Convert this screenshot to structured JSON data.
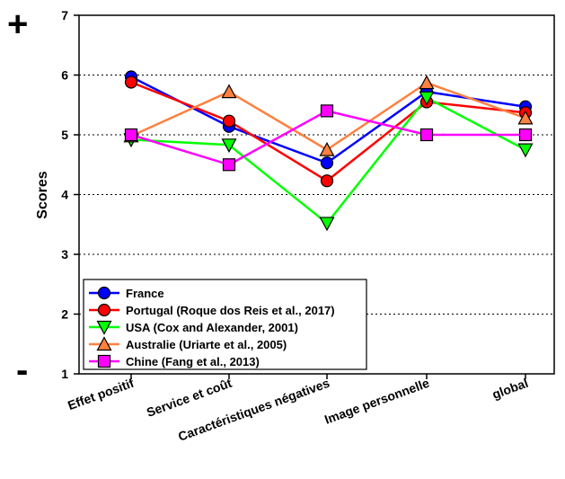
{
  "chart_data": {
    "type": "line",
    "title": "",
    "xlabel": "",
    "ylabel": "Scores",
    "ylim": [
      1,
      7
    ],
    "yticks": [
      1,
      2,
      3,
      4,
      5,
      6,
      7
    ],
    "categories": [
      "Effet positif",
      "Service et coût",
      "Caractéristiques négatives",
      "Image personnelle",
      "global"
    ],
    "grid": "horizontal dotted",
    "legend_position": "bottom-left",
    "top_sign": "+",
    "bottom_sign": "-",
    "series": [
      {
        "name": "France",
        "color": "#0000ff",
        "marker": "circle",
        "marker_color": "#0000ff",
        "values": [
          5.97,
          5.14,
          4.53,
          5.72,
          5.47
        ]
      },
      {
        "name": "Portugal (Roque dos Reis et al., 2017)",
        "color": "#ff0000",
        "marker": "circle",
        "marker_color": "#ff0000",
        "values": [
          5.88,
          5.23,
          4.23,
          5.55,
          5.37
        ]
      },
      {
        "name": "USA (Cox and Alexander, 2001)",
        "color": "#00ff00",
        "marker": "triangle-down",
        "marker_color": "#00ff00",
        "values": [
          4.92,
          4.83,
          3.52,
          5.62,
          4.75
        ]
      },
      {
        "name": "Australie (Uriarte et al., 2005)",
        "color": "#ff8040",
        "marker": "triangle-up",
        "marker_color": "#ff8040",
        "values": [
          4.98,
          5.72,
          4.75,
          5.87,
          5.28
        ]
      },
      {
        "name": "Chine (Fang et al., 2013)",
        "color": "#ff00ff",
        "marker": "square",
        "marker_color": "#ff00ff",
        "values": [
          5.0,
          4.5,
          5.4,
          5.0,
          5.0
        ]
      }
    ]
  }
}
